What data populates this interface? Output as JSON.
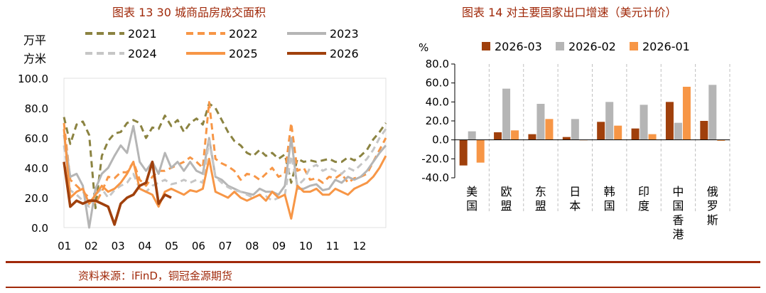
{
  "figure": {
    "left_title": "图表 13  30 城商品房成交面积",
    "right_title": "图表 14  对主要国家出口增速（美元计价）",
    "source": "资料来源：iFinD，铜冠金源期货"
  },
  "chart_data": [
    {
      "type": "line",
      "title": "图表 13  30 城商品房成交面积",
      "ylabel": "万平方米",
      "ylim": [
        0,
        100
      ],
      "yticks": [
        "0.0",
        "20.0",
        "40.0",
        "60.0",
        "80.0",
        "100.0"
      ],
      "xticks": [
        "01",
        "02",
        "03",
        "04",
        "05",
        "06",
        "07",
        "08",
        "09",
        "10",
        "11",
        "12"
      ],
      "x_unit": "week",
      "series": [
        {
          "name": "2021",
          "color": "#8b8341",
          "dash": "dashed",
          "x": [
            1,
            2,
            3,
            4,
            5,
            6,
            7,
            8,
            9,
            10,
            11,
            12,
            13,
            14,
            15,
            16,
            17,
            18,
            19,
            20,
            21,
            22,
            23,
            24,
            25,
            26,
            27,
            28,
            29,
            30,
            31,
            32,
            33,
            34,
            35,
            36,
            37,
            38,
            39,
            40,
            41,
            42,
            43,
            44,
            45,
            46,
            47,
            48,
            49,
            50,
            51,
            52
          ],
          "values": [
            74,
            56,
            69,
            71,
            62,
            13,
            48,
            58,
            63,
            64,
            70,
            72,
            70,
            60,
            67,
            66,
            75,
            68,
            72,
            64,
            70,
            73,
            69,
            83,
            80,
            72,
            64,
            58,
            55,
            50,
            48,
            52,
            48,
            50,
            46,
            49,
            30,
            46,
            44,
            45,
            44,
            45,
            46,
            44,
            44,
            47,
            45,
            48,
            52,
            59,
            64,
            70
          ]
        },
        {
          "name": "2022",
          "color": "#f79646",
          "dash": "dashed",
          "x": [
            1,
            2,
            3,
            4,
            5,
            6,
            7,
            8,
            9,
            10,
            11,
            12,
            13,
            14,
            15,
            16,
            17,
            18,
            19,
            20,
            21,
            22,
            23,
            24,
            25,
            26,
            27,
            28,
            29,
            30,
            31,
            32,
            33,
            34,
            35,
            36,
            37,
            38,
            39,
            40,
            41,
            42,
            43,
            44,
            45,
            46,
            47,
            48,
            49,
            50,
            51,
            52
          ],
          "values": [
            70,
            32,
            28,
            24,
            20,
            16,
            24,
            34,
            33,
            37,
            37,
            44,
            32,
            28,
            34,
            38,
            38,
            40,
            42,
            44,
            47,
            44,
            40,
            84,
            46,
            43,
            41,
            38,
            32,
            36,
            35,
            32,
            36,
            40,
            34,
            36,
            70,
            38,
            40,
            32,
            33,
            30,
            34,
            33,
            36,
            30,
            33,
            34,
            36,
            44,
            52,
            60
          ]
        },
        {
          "name": "2023",
          "color": "#b5b5b5",
          "dash": "solid",
          "x": [
            1,
            2,
            3,
            4,
            5,
            6,
            7,
            8,
            9,
            10,
            11,
            12,
            13,
            14,
            15,
            16,
            17,
            18,
            19,
            20,
            21,
            22,
            23,
            24,
            25,
            26,
            27,
            28,
            29,
            30,
            31,
            32,
            33,
            34,
            35,
            36,
            37,
            38,
            39,
            40,
            41,
            42,
            43,
            44,
            45,
            46,
            47,
            48,
            49,
            50,
            51,
            52
          ],
          "values": [
            62,
            34,
            36,
            28,
            0,
            26,
            36,
            40,
            48,
            55,
            50,
            68,
            44,
            38,
            44,
            36,
            50,
            40,
            44,
            38,
            44,
            38,
            36,
            60,
            34,
            32,
            28,
            26,
            24,
            23,
            22,
            26,
            24,
            24,
            22,
            28,
            60,
            26,
            26,
            28,
            29,
            25,
            26,
            32,
            30,
            34,
            32,
            34,
            38,
            44,
            50,
            55
          ]
        },
        {
          "name": "2024",
          "color": "#c6c6c6",
          "dash": "dashed",
          "x": [
            1,
            2,
            3,
            4,
            5,
            6,
            7,
            8,
            9,
            10,
            11,
            12,
            13,
            14,
            15,
            16,
            17,
            18,
            19,
            20,
            21,
            22,
            23,
            24,
            25,
            26,
            27,
            28,
            29,
            30,
            31,
            32,
            33,
            34,
            35,
            36,
            37,
            38,
            39,
            40,
            41,
            42,
            43,
            44,
            45,
            46,
            47,
            48,
            49,
            50,
            51,
            52
          ],
          "values": [
            55,
            25,
            22,
            18,
            14,
            22,
            26,
            20,
            25,
            28,
            30,
            36,
            26,
            24,
            28,
            30,
            32,
            29,
            30,
            32,
            30,
            32,
            30,
            58,
            34,
            30,
            27,
            25,
            24,
            22,
            20,
            22,
            21,
            18,
            20,
            22,
            48,
            28,
            32,
            40,
            42,
            38,
            40,
            38,
            36,
            40,
            38,
            42,
            46,
            52,
            60,
            66
          ]
        },
        {
          "name": "2025",
          "color": "#f79646",
          "dash": "solid",
          "x": [
            1,
            2,
            3,
            4,
            5,
            6,
            7,
            8,
            9,
            10,
            11,
            12,
            13,
            14,
            15,
            16,
            17,
            18,
            19,
            20,
            21,
            22,
            23,
            24,
            25,
            26,
            27,
            28,
            29,
            30,
            31,
            32,
            33,
            34,
            35,
            36,
            37,
            38,
            39,
            40,
            41,
            42,
            43,
            44,
            45,
            46,
            47,
            48,
            49,
            50,
            51,
            52
          ],
          "values": [
            66,
            20,
            24,
            26,
            16,
            22,
            28,
            24,
            26,
            30,
            36,
            44,
            26,
            24,
            22,
            14,
            24,
            26,
            24,
            22,
            25,
            24,
            26,
            46,
            24,
            22,
            20,
            24,
            20,
            18,
            20,
            22,
            18,
            24,
            20,
            22,
            6,
            28,
            24,
            24,
            26,
            22,
            22,
            26,
            24,
            22,
            26,
            28,
            30,
            34,
            40,
            48
          ]
        },
        {
          "name": "2026",
          "color": "#a0400c",
          "dash": "solid",
          "x": [
            1,
            2,
            3,
            4,
            5,
            6,
            7,
            8,
            9,
            10,
            11,
            12,
            13,
            14,
            15,
            16,
            17,
            18
          ],
          "values": [
            44,
            14,
            18,
            16,
            18,
            18,
            16,
            14,
            2,
            16,
            20,
            22,
            28,
            30,
            44,
            16,
            22,
            20
          ]
        }
      ]
    },
    {
      "type": "bar",
      "title": "图表 14  对主要国家出口增速（美元计价）",
      "ylabel": "%",
      "ylim": [
        -40,
        80
      ],
      "yticks": [
        "-40.0",
        "-20.0",
        "0.0",
        "20.0",
        "40.0",
        "60.0",
        "80.0"
      ],
      "categories": [
        "美国",
        "欧盟",
        "东盟",
        "日本",
        "韩国",
        "印度",
        "中国香港",
        "俄罗斯"
      ],
      "series": [
        {
          "name": "2026-03",
          "color": "#a0400c",
          "values": [
            -27,
            8,
            6,
            3,
            19,
            12,
            40,
            20
          ]
        },
        {
          "name": "2026-02",
          "color": "#b5b5b5",
          "values": [
            9,
            54,
            38,
            22,
            40,
            37,
            18,
            58
          ]
        },
        {
          "name": "2026-01",
          "color": "#f79646",
          "values": [
            -24,
            10,
            22,
            0,
            15,
            6,
            56,
            -1
          ]
        }
      ]
    }
  ]
}
